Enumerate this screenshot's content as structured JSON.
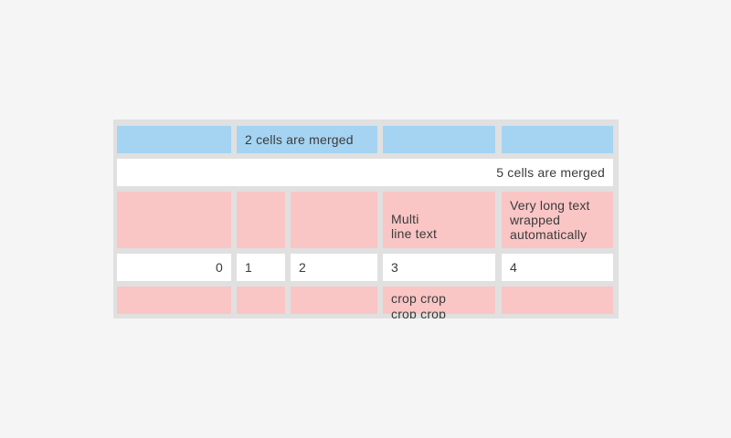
{
  "page": {
    "background_color": "#f5f5f5"
  },
  "table": {
    "description": "table widget with merged, multi-line and cropped cells",
    "colors": {
      "header_row_blue": "#a5d4f3",
      "accent_row_pink": "#fac5c5",
      "plain_row_white": "#ffffff",
      "grid_background": "#e0e0e0",
      "text": "#3b3b3b"
    },
    "rows": [
      {
        "type": "blue",
        "cells": [
          {
            "text": ""
          },
          {
            "text": "2 cells are merged",
            "colspan": 2,
            "align": "left"
          },
          {
            "text": ""
          },
          {
            "text": ""
          }
        ]
      },
      {
        "type": "white",
        "cells": [
          {
            "text": "5 cells are merged",
            "colspan": 5,
            "align": "right"
          }
        ]
      },
      {
        "type": "pink",
        "cells": [
          {
            "text": ""
          },
          {
            "text": ""
          },
          {
            "text": ""
          },
          {
            "text": "Multi\nline text",
            "align": "left"
          },
          {
            "text": "Very long text wrapped automatically",
            "align": "left"
          }
        ]
      },
      {
        "type": "white",
        "cells": [
          {
            "text": "0",
            "align": "right"
          },
          {
            "text": "1",
            "align": "left"
          },
          {
            "text": "2",
            "align": "left"
          },
          {
            "text": "3",
            "align": "left"
          },
          {
            "text": "4",
            "align": "left"
          }
        ]
      },
      {
        "type": "pink",
        "cells": [
          {
            "text": ""
          },
          {
            "text": ""
          },
          {
            "text": ""
          },
          {
            "text": "crop crop crop crop crop crop crop crop",
            "cropped": true,
            "align": "left"
          },
          {
            "text": ""
          }
        ]
      }
    ]
  }
}
